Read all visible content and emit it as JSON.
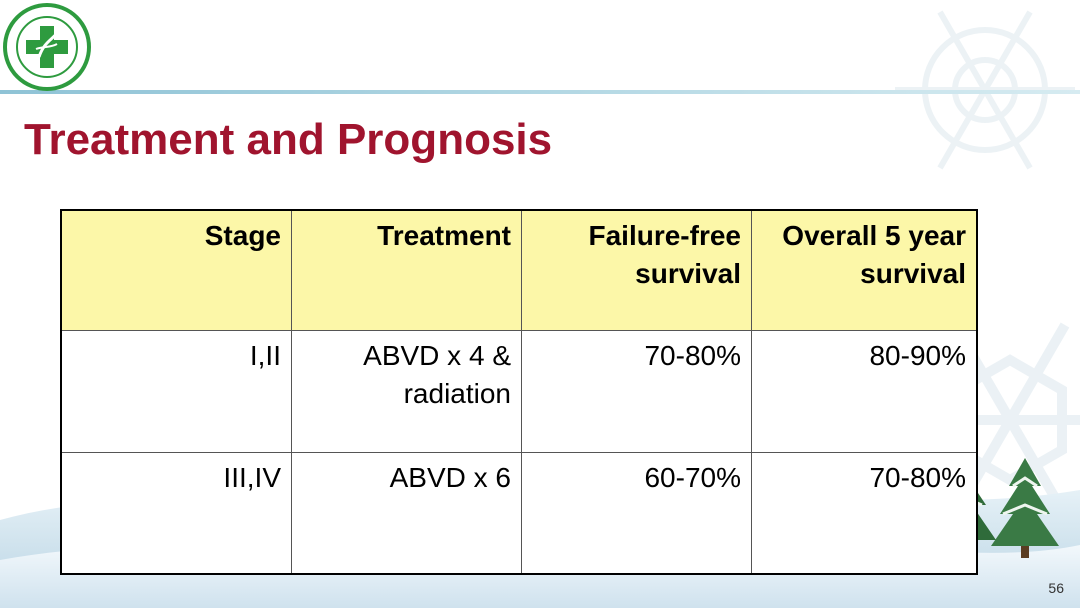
{
  "slide": {
    "title": "Treatment and Prognosis",
    "page_number": "56"
  },
  "table": {
    "headers": [
      "Stage",
      "Treatment",
      "Failure-free survival",
      "Overall 5 year survival"
    ],
    "rows": [
      [
        "I,II",
        "ABVD x 4 & radiation",
        "70-80%",
        "80-90%"
      ],
      [
        "III,IV",
        "ABVD x 6",
        "60-70%",
        "70-80%"
      ]
    ]
  },
  "colors": {
    "title": "#a0142e",
    "header_fill": "#fcf7a8",
    "logo_green": "#2e9b3f"
  },
  "icons": {
    "logo": "hospital-cross-logo-icon",
    "decor": "snowflake-icon",
    "trees": "pine-tree-icon"
  }
}
